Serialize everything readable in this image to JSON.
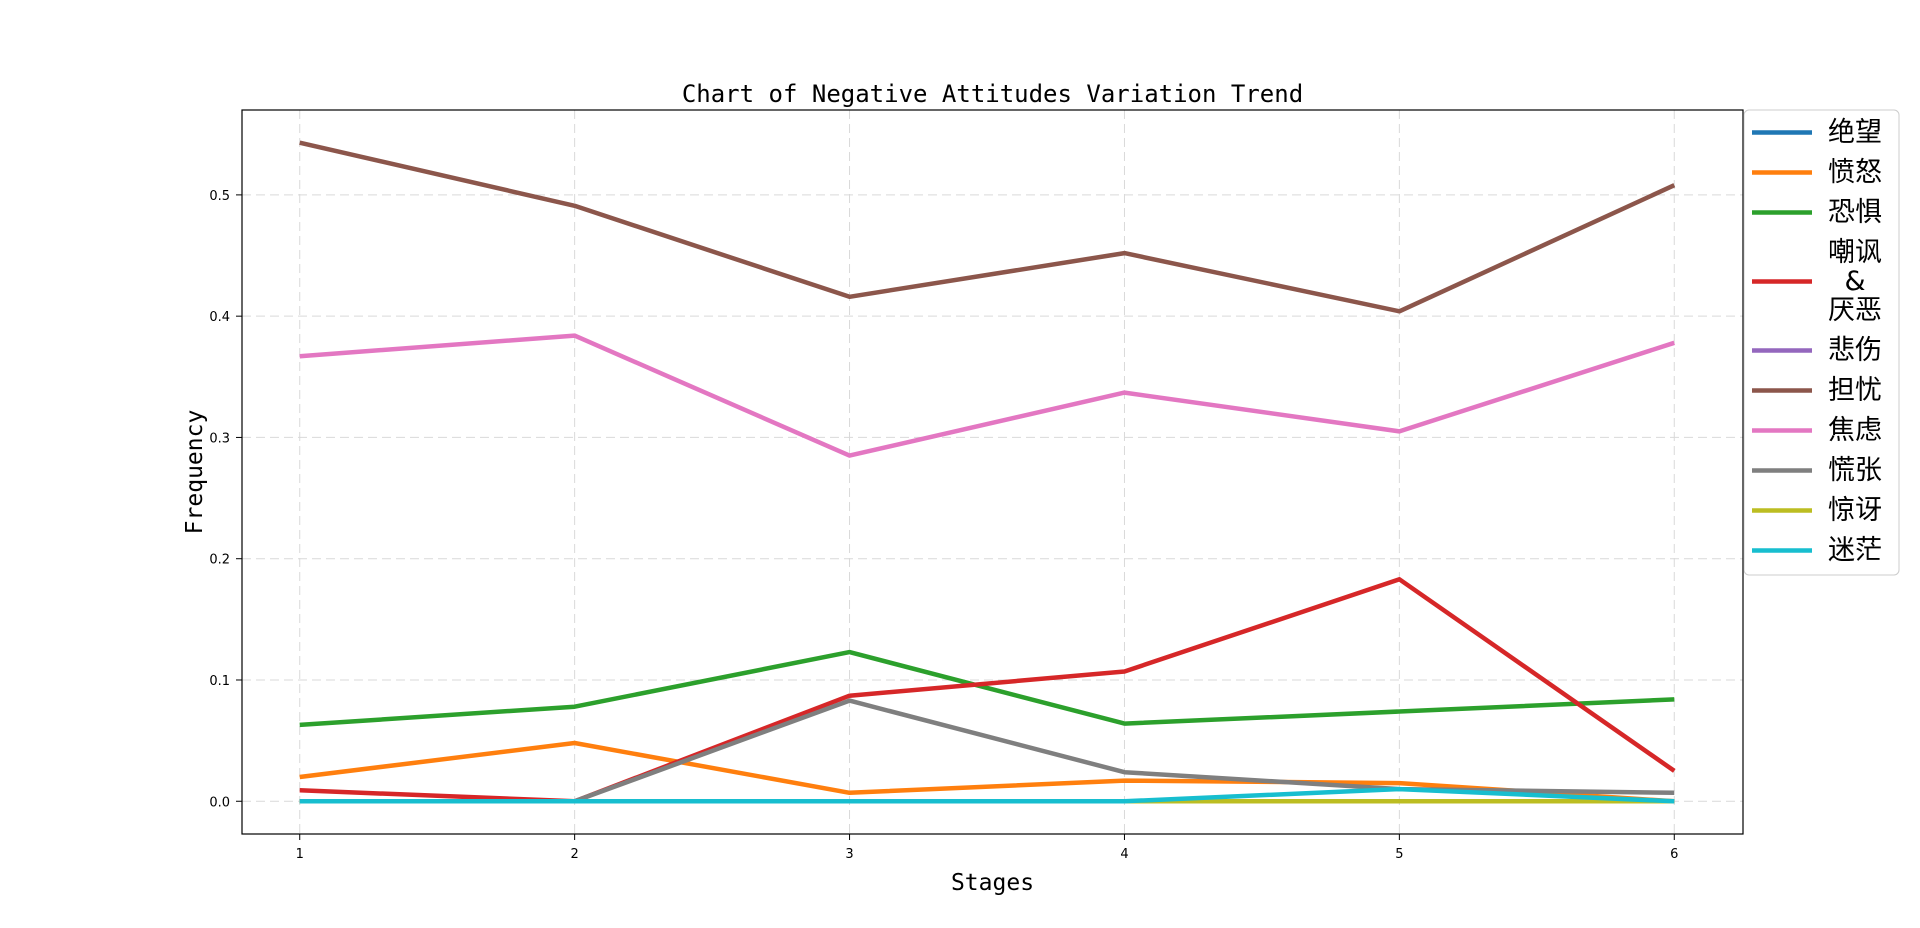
{
  "chart_data": {
    "type": "line",
    "title": "Chart of Negative Attitudes Variation Trend",
    "xlabel": "Stages",
    "ylabel": "Frequency",
    "x": [
      1,
      2,
      3,
      4,
      5,
      6
    ],
    "x_ticks": [
      "1",
      "2",
      "3",
      "4",
      "5",
      "6"
    ],
    "y_ticks": [
      "0.0",
      "0.1",
      "0.2",
      "0.3",
      "0.4",
      "0.5"
    ],
    "xlim": [
      0.79,
      6.25
    ],
    "ylim": [
      -0.027,
      0.57
    ],
    "grid": true,
    "legend_position": "upper-right-outside",
    "series": [
      {
        "name": "绝望",
        "color": "#1f77b4",
        "values": [
          0,
          0,
          0,
          0,
          0,
          0
        ]
      },
      {
        "name": "愤怒",
        "color": "#ff7f0e",
        "values": [
          0.02,
          0.048,
          0.007,
          0.017,
          0.015,
          0
        ]
      },
      {
        "name": "恐惧",
        "color": "#2ca02c",
        "values": [
          0.063,
          0.078,
          0.123,
          0.064,
          0.074,
          0.084
        ]
      },
      {
        "name": "嘲讽\n&\n厌恶",
        "color": "#d62728",
        "values": [
          0.009,
          0.0,
          0.087,
          0.107,
          0.183,
          0.025
        ]
      },
      {
        "name": "悲伤",
        "color": "#9467bd",
        "values": [
          0,
          0,
          0,
          0,
          0,
          0
        ]
      },
      {
        "name": "担忧",
        "color": "#8c564b",
        "values": [
          0.543,
          0.491,
          0.416,
          0.452,
          0.404,
          0.508
        ]
      },
      {
        "name": "焦虑",
        "color": "#e377c2",
        "values": [
          0.367,
          0.384,
          0.285,
          0.337,
          0.305,
          0.378
        ]
      },
      {
        "name": "慌张",
        "color": "#7f7f7f",
        "values": [
          0,
          0,
          0.083,
          0.024,
          0.01,
          0.007
        ]
      },
      {
        "name": "惊讶",
        "color": "#bcbd22",
        "values": [
          0,
          0,
          0,
          0,
          0,
          0
        ]
      },
      {
        "name": "迷茫",
        "color": "#17becf",
        "values": [
          0,
          0,
          0,
          0,
          0.01,
          0
        ]
      }
    ]
  }
}
